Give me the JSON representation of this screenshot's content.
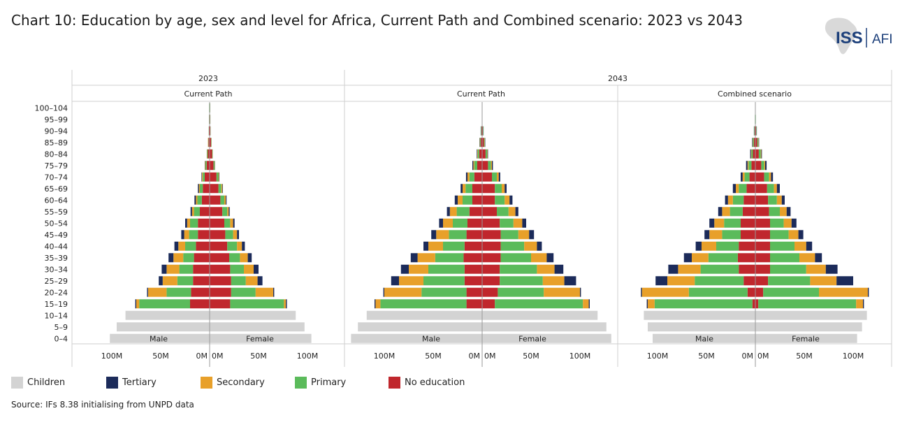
{
  "title": "Chart 10: Education by age, sex and level for Africa, Current Path and Combined scenario: 2023 vs 2043",
  "source": "Source: IFs 8.38 initialising from UNPD data",
  "logo": {
    "text_iss": "ISS",
    "text_afi": "AFI"
  },
  "legend": [
    {
      "label": "Children",
      "color": "#d3d3d3"
    },
    {
      "label": "Tertiary",
      "color": "#1c2b5a"
    },
    {
      "label": "Secondary",
      "color": "#e8a02a"
    },
    {
      "label": "Primary",
      "color": "#5bbb5b"
    },
    {
      "label": "No education",
      "color": "#c0272d"
    }
  ],
  "chart_data": {
    "type": "bar",
    "orientation": "horizontal population pyramid",
    "unit": "people (M = million)",
    "year_headers": [
      "2023",
      "2043"
    ],
    "side_labels": {
      "left": "Male",
      "right": "Female"
    },
    "age_groups": [
      "100–104",
      "95–99",
      "90–94",
      "85–89",
      "80–84",
      "75–79",
      "70–74",
      "65–69",
      "60–64",
      "55–59",
      "50–54",
      "45–49",
      "40–44",
      "35–39",
      "30–34",
      "25–29",
      "20–24",
      "15–19",
      "10–14",
      "5–9",
      "0–4"
    ],
    "x_ticks": {
      "male": [
        "100M",
        "50M",
        "0M"
      ],
      "female": [
        "0M",
        "50M",
        "100M"
      ]
    },
    "xlim_millions": [
      0,
      110
    ],
    "stack_order_from_axis": [
      "No education",
      "Primary",
      "Secondary",
      "Tertiary"
    ],
    "panels": [
      {
        "year": "2023",
        "scenario": "Current Path",
        "children_male": [
          0,
          0,
          0,
          0,
          0,
          0,
          0,
          0,
          0,
          0,
          0,
          0,
          0,
          0,
          0,
          0,
          0,
          0,
          86,
          95,
          102
        ],
        "children_female": [
          0,
          0,
          0,
          0,
          0,
          0,
          0,
          0,
          0,
          0,
          0,
          0,
          0,
          0,
          0,
          0,
          0,
          0,
          88,
          97,
          104
        ],
        "male": {
          "No education": [
            0.3,
            0.5,
            0.7,
            1.2,
            1.8,
            3,
            5,
            7,
            8,
            10,
            12,
            12,
            14,
            16,
            17,
            17,
            19,
            20,
            0,
            0,
            0
          ],
          "Primary": [
            0.2,
            0.2,
            0.2,
            0.4,
            0.7,
            1.2,
            2,
            3,
            4.5,
            6,
            8,
            9,
            11,
            11,
            14,
            16,
            25,
            52,
            0,
            0,
            0
          ],
          "Secondary": [
            0,
            0,
            0,
            0.2,
            0.3,
            0.5,
            0.8,
            1,
            1.5,
            2,
            3,
            5,
            7,
            10,
            13,
            15,
            19,
            3,
            0,
            0,
            0
          ],
          "Tertiary": [
            0,
            0,
            0,
            0,
            0.1,
            0.3,
            0.5,
            1,
            1.5,
            1.5,
            2,
            3,
            4,
            5,
            5,
            4,
            1,
            1,
            0,
            0,
            0
          ]
        },
        "female": {
          "No education": [
            0.5,
            0.6,
            0.8,
            1.5,
            2.5,
            4,
            7,
            9,
            11,
            13,
            15,
            16,
            18,
            20,
            21,
            22,
            22,
            21,
            0,
            0,
            0
          ],
          "Primary": [
            0.2,
            0.2,
            0.2,
            0.4,
            0.6,
            1,
            2,
            3,
            4,
            5,
            6,
            8,
            10,
            11,
            14,
            15,
            25,
            55,
            0,
            0,
            0
          ],
          "Secondary": [
            0,
            0,
            0,
            0.1,
            0.1,
            0.3,
            0.6,
            1,
            1.5,
            1.5,
            3,
            4,
            5,
            8,
            10,
            12,
            18,
            2,
            0,
            0,
            0
          ],
          "Tertiary": [
            0,
            0,
            0,
            0,
            0,
            0.2,
            0.4,
            0.5,
            0.8,
            1,
            1.5,
            2,
            3,
            4,
            5,
            5,
            1,
            1,
            0,
            0,
            0
          ]
        }
      },
      {
        "year": "2043",
        "scenario": "Current Path",
        "children_male": [
          0,
          0,
          0,
          0,
          0,
          0,
          0,
          0,
          0,
          0,
          0,
          0,
          0,
          0,
          0,
          0,
          0,
          0,
          118,
          127,
          134
        ],
        "children_female": [
          0,
          0,
          0,
          0,
          0,
          0,
          0,
          0,
          0,
          0,
          0,
          0,
          0,
          0,
          0,
          0,
          0,
          0,
          118,
          127,
          132
        ],
        "male": {
          "No education": [
            0,
            0,
            0.8,
            1.5,
            3,
            5,
            8,
            10,
            10,
            13,
            15,
            16,
            18,
            19,
            18,
            18,
            16,
            16,
            0,
            0,
            0
          ],
          "Primary": [
            0,
            0,
            0.5,
            0.8,
            1.5,
            3,
            5,
            7,
            10,
            13,
            15,
            18,
            22,
            29,
            37,
            42,
            46,
            88,
            0,
            0,
            0
          ],
          "Secondary": [
            0,
            0,
            0,
            0.2,
            0.5,
            1,
            2,
            3,
            5,
            7,
            10,
            13,
            15,
            18,
            20,
            25,
            38,
            5,
            0,
            0,
            0
          ],
          "Tertiary": [
            0,
            0,
            0.2,
            0.3,
            0.5,
            1,
            1.5,
            2,
            3,
            3,
            4,
            5,
            5,
            7,
            8,
            8,
            1,
            1,
            0,
            0,
            0
          ]
        },
        "female": {
          "No education": [
            0,
            0,
            0.8,
            1.8,
            3.5,
            6,
            10,
            13,
            13,
            15,
            18,
            19,
            19,
            19,
            18,
            18,
            16,
            13,
            0,
            0,
            0
          ],
          "Primary": [
            0,
            0,
            0.5,
            0.8,
            1.5,
            3,
            5,
            7,
            10,
            12,
            14,
            18,
            24,
            31,
            38,
            44,
            47,
            90,
            0,
            0,
            0
          ],
          "Secondary": [
            0,
            0,
            0,
            0.3,
            0.5,
            1,
            2,
            3,
            5,
            7,
            9,
            11,
            13,
            16,
            18,
            22,
            37,
            6,
            0,
            0,
            0
          ],
          "Tertiary": [
            0,
            0,
            0.2,
            0.3,
            0.5,
            1,
            1.5,
            2,
            3,
            3,
            4,
            5,
            5,
            7,
            9,
            12,
            1,
            1,
            0,
            0,
            0
          ]
        }
      },
      {
        "year": "2043",
        "scenario": "Combined scenario",
        "children_male": [
          0,
          0,
          0,
          0,
          0,
          0,
          0,
          0,
          0,
          0,
          0,
          0,
          0,
          0,
          0,
          0,
          0,
          0,
          114,
          110,
          105
        ],
        "children_female": [
          0,
          0,
          0,
          0,
          0,
          0,
          0,
          0,
          0,
          0,
          0,
          0,
          0,
          0,
          0,
          0,
          0,
          0,
          114,
          109,
          104
        ],
        "male": {
          "No education": [
            0,
            0.3,
            0.8,
            1.5,
            2.5,
            4,
            6,
            9,
            12,
            13,
            15,
            15,
            17,
            18,
            17,
            12,
            8,
            3,
            0,
            0,
            0
          ],
          "Primary": [
            0,
            0.2,
            0.5,
            1,
            1.5,
            3,
            5,
            8,
            11,
            13,
            17,
            19,
            23,
            30,
            39,
            50,
            60,
            100,
            0,
            0,
            0
          ],
          "Secondary": [
            0,
            0,
            0,
            0.3,
            0.5,
            1,
            2,
            3,
            5,
            8,
            10,
            13,
            15,
            17,
            23,
            28,
            48,
            7,
            0,
            0,
            0
          ],
          "Tertiary": [
            0,
            0,
            0.2,
            0.5,
            0.8,
            1.5,
            2,
            3,
            3,
            4,
            5,
            5,
            6,
            8,
            10,
            12,
            1,
            1,
            0,
            0,
            0
          ]
        },
        "female": {
          "No education": [
            0,
            0.3,
            0.8,
            2,
            3.5,
            6,
            9,
            12,
            13,
            14,
            15,
            15,
            15,
            15,
            15,
            13,
            8,
            3,
            0,
            0,
            0
          ],
          "Primary": [
            0,
            0.2,
            0.5,
            1,
            2,
            3,
            5,
            7,
            9,
            11,
            14,
            19,
            25,
            30,
            37,
            43,
            57,
            100,
            0,
            0,
            0
          ],
          "Secondary": [
            0,
            0,
            0,
            0.4,
            0.6,
            1,
            2,
            3,
            5,
            7,
            8,
            10,
            12,
            16,
            20,
            27,
            50,
            7,
            0,
            0,
            0
          ],
          "Tertiary": [
            0,
            0,
            0.2,
            0.4,
            0.6,
            1.5,
            2,
            3,
            3,
            4,
            5,
            5,
            6,
            7,
            12,
            17,
            1,
            1,
            0,
            0,
            0
          ]
        }
      }
    ]
  }
}
